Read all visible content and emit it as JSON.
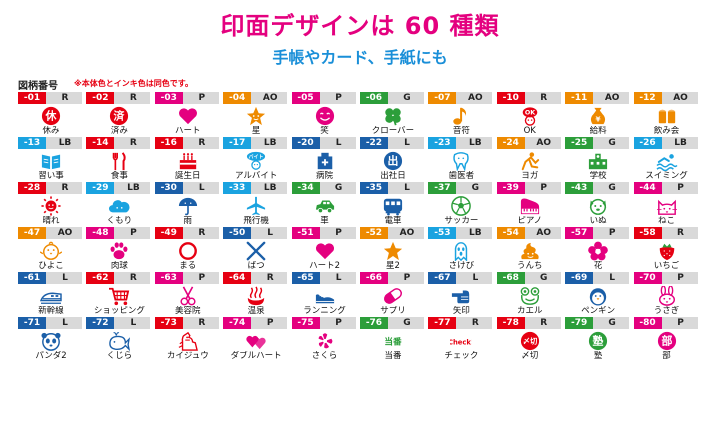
{
  "header": {
    "title": "印面デザインは 60 種類",
    "subtitle": "手帳やカード、手紙にも",
    "label": "図柄番号",
    "note": "※本体色とインキ色は同色です。"
  },
  "colors": {
    "R": "#e60012",
    "P": "#e4007f",
    "AO": "#ee8a00",
    "G": "#2c9e3a",
    "LB": "#1aa3e0",
    "L": "#1b5fa8"
  },
  "items": [
    {
      "num": "-01",
      "code": "R",
      "name": "休み",
      "icon": "circle-char",
      "ch": "休"
    },
    {
      "num": "-02",
      "code": "R",
      "name": "済み",
      "icon": "circle-char",
      "ch": "済"
    },
    {
      "num": "-03",
      "code": "P",
      "name": "ハート",
      "icon": "heart"
    },
    {
      "num": "-04",
      "code": "AO",
      "name": "星",
      "icon": "star-face"
    },
    {
      "num": "-05",
      "code": "P",
      "name": "笑",
      "icon": "smile"
    },
    {
      "num": "-06",
      "code": "G",
      "name": "クローバー",
      "icon": "clover"
    },
    {
      "num": "-07",
      "code": "AO",
      "name": "音符",
      "icon": "note"
    },
    {
      "num": "-10",
      "code": "R",
      "name": "OK",
      "icon": "ok"
    },
    {
      "num": "-11",
      "code": "AO",
      "name": "給料",
      "icon": "money"
    },
    {
      "num": "-12",
      "code": "AO",
      "name": "飲み会",
      "icon": "beer"
    },
    {
      "num": "-13",
      "code": "LB",
      "name": "習い事",
      "icon": "book"
    },
    {
      "num": "-14",
      "code": "R",
      "name": "食事",
      "icon": "fork"
    },
    {
      "num": "-16",
      "code": "R",
      "name": "誕生日",
      "icon": "cake"
    },
    {
      "num": "-17",
      "code": "LB",
      "name": "アルバイト",
      "icon": "baito",
      "ch": "バイト"
    },
    {
      "num": "-20",
      "code": "L",
      "name": "病院",
      "icon": "hospital"
    },
    {
      "num": "-22",
      "code": "L",
      "name": "出社日",
      "icon": "circle-char",
      "ch": "出"
    },
    {
      "num": "-23",
      "code": "LB",
      "name": "歯医者",
      "icon": "tooth"
    },
    {
      "num": "-24",
      "code": "AO",
      "name": "ヨガ",
      "icon": "yoga"
    },
    {
      "num": "-25",
      "code": "G",
      "name": "学校",
      "icon": "school"
    },
    {
      "num": "-26",
      "code": "LB",
      "name": "スイミング",
      "icon": "swim"
    },
    {
      "num": "-28",
      "code": "R",
      "name": "晴れ",
      "icon": "sun"
    },
    {
      "num": "-29",
      "code": "LB",
      "name": "くもり",
      "icon": "cloud"
    },
    {
      "num": "-30",
      "code": "L",
      "name": "雨",
      "icon": "umbrella"
    },
    {
      "num": "-33",
      "code": "LB",
      "name": "飛行機",
      "icon": "plane"
    },
    {
      "num": "-34",
      "code": "G",
      "name": "車",
      "icon": "car"
    },
    {
      "num": "-35",
      "code": "L",
      "name": "電車",
      "icon": "train"
    },
    {
      "num": "-37",
      "code": "G",
      "name": "サッカー",
      "icon": "ball"
    },
    {
      "num": "-39",
      "code": "P",
      "name": "ピアノ",
      "icon": "piano"
    },
    {
      "num": "-43",
      "code": "G",
      "name": "いぬ",
      "icon": "dog"
    },
    {
      "num": "-44",
      "code": "P",
      "name": "ねこ",
      "icon": "cat"
    },
    {
      "num": "-47",
      "code": "AO",
      "name": "ひよこ",
      "icon": "chick"
    },
    {
      "num": "-48",
      "code": "P",
      "name": "肉球",
      "icon": "paw"
    },
    {
      "num": "-49",
      "code": "R",
      "name": "まる",
      "icon": "ring"
    },
    {
      "num": "-50",
      "code": "L",
      "name": "ばつ",
      "icon": "cross"
    },
    {
      "num": "-51",
      "code": "P",
      "name": "ハート2",
      "icon": "heart"
    },
    {
      "num": "-52",
      "code": "AO",
      "name": "星2",
      "icon": "star"
    },
    {
      "num": "-53",
      "code": "LB",
      "name": "さけび",
      "icon": "scream"
    },
    {
      "num": "-54",
      "code": "AO",
      "name": "うんち",
      "icon": "poop"
    },
    {
      "num": "-57",
      "code": "P",
      "name": "花",
      "icon": "flower"
    },
    {
      "num": "-58",
      "code": "R",
      "name": "いちご",
      "icon": "strawberry"
    },
    {
      "num": "-61",
      "code": "L",
      "name": "新幹線",
      "icon": "shinkansen"
    },
    {
      "num": "-62",
      "code": "R",
      "name": "ショッピング",
      "icon": "cart"
    },
    {
      "num": "-63",
      "code": "P",
      "name": "美容院",
      "icon": "scissors"
    },
    {
      "num": "-64",
      "code": "R",
      "name": "温泉",
      "icon": "onsen"
    },
    {
      "num": "-65",
      "code": "L",
      "name": "ランニング",
      "icon": "shoe"
    },
    {
      "num": "-66",
      "code": "P",
      "name": "サプリ",
      "icon": "pill"
    },
    {
      "num": "-67",
      "code": "L",
      "name": "矢印",
      "icon": "point"
    },
    {
      "num": "-68",
      "code": "G",
      "name": "カエル",
      "icon": "frog"
    },
    {
      "num": "-69",
      "code": "L",
      "name": "ペンギン",
      "icon": "penguin"
    },
    {
      "num": "-70",
      "code": "P",
      "name": "うさぎ",
      "icon": "rabbit"
    },
    {
      "num": "-71",
      "code": "L",
      "name": "パンダ2",
      "icon": "panda"
    },
    {
      "num": "-72",
      "code": "L",
      "name": "くじら",
      "icon": "whale"
    },
    {
      "num": "-73",
      "code": "R",
      "name": "カイジュウ",
      "icon": "kaiju"
    },
    {
      "num": "-74",
      "code": "P",
      "name": "ダブルハート",
      "icon": "hearts"
    },
    {
      "num": "-75",
      "code": "P",
      "name": "さくら",
      "icon": "sakura"
    },
    {
      "num": "-76",
      "code": "G",
      "name": "当番",
      "icon": "text-stamp",
      "ch": "当番"
    },
    {
      "num": "-77",
      "code": "R",
      "name": "チェック",
      "icon": "text-stamp",
      "ch": "Check!"
    },
    {
      "num": "-78",
      "code": "R",
      "name": "〆切",
      "icon": "circle-char",
      "ch": "〆切"
    },
    {
      "num": "-79",
      "code": "G",
      "name": "塾",
      "icon": "circle-char",
      "ch": "塾"
    },
    {
      "num": "-80",
      "code": "P",
      "name": "部",
      "icon": "circle-char",
      "ch": "部"
    }
  ]
}
